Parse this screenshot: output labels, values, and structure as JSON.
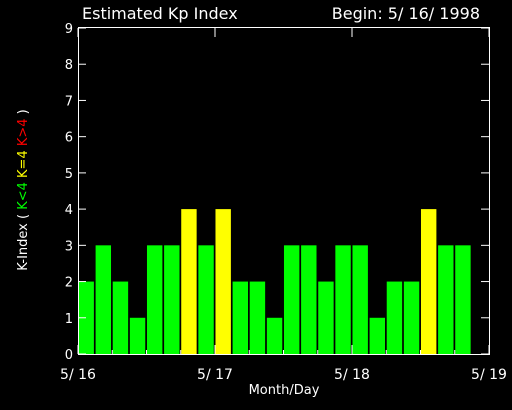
{
  "chart_data": {
    "type": "bar",
    "title": "Estimated Kp Index",
    "subtitle": "Begin: 5/ 16/ 1998",
    "xlabel": "Month/Day",
    "ylabel_parts": [
      {
        "text": "K-Index (",
        "color": "#ffffff"
      },
      {
        "text": "K<4",
        "color": "#00ff00"
      },
      {
        "text": "K=4",
        "color": "#ffff00"
      },
      {
        "text": "K>4",
        "color": "#ff0000"
      },
      {
        "text": ")",
        "color": "#ffffff"
      }
    ],
    "ylim": [
      0,
      9
    ],
    "yticks": [
      "0",
      "1",
      "2",
      "3",
      "4",
      "5",
      "6",
      "7",
      "8",
      "9"
    ],
    "xlim": [
      0,
      3
    ],
    "xticks": [
      {
        "value": 0,
        "label": "5/ 16"
      },
      {
        "value": 1,
        "label": "5/ 17"
      },
      {
        "value": 2,
        "label": "5/ 18"
      },
      {
        "value": 3,
        "label": "5/ 19"
      }
    ],
    "bar_width_days": 0.1125,
    "values": [
      2,
      3,
      2,
      1,
      3,
      3,
      4,
      3,
      4,
      2,
      2,
      1,
      3,
      3,
      2,
      3,
      3,
      1,
      2,
      2,
      4,
      3,
      3
    ],
    "colors": {
      "low": "#00ff00",
      "equal": "#ffff00",
      "high": "#ff0000"
    },
    "grid": false
  }
}
